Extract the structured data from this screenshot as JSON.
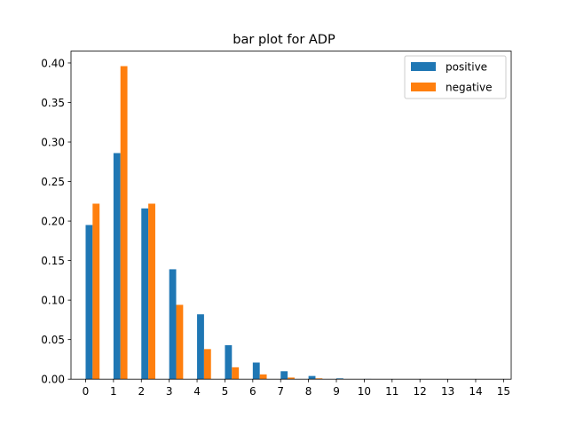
{
  "chart_data": {
    "type": "bar",
    "title": "bar plot for ADP",
    "xlabel": "",
    "ylabel": "",
    "categories": [
      "0",
      "1",
      "2",
      "3",
      "4",
      "5",
      "6",
      "7",
      "8",
      "9",
      "10",
      "11",
      "12",
      "13",
      "14",
      "15"
    ],
    "series": [
      {
        "name": "positive",
        "color": "#1f77b4",
        "values": [
          0.195,
          0.286,
          0.216,
          0.139,
          0.082,
          0.043,
          0.021,
          0.01,
          0.004,
          0.001,
          0.0003,
          0.0001,
          0,
          0,
          0,
          0
        ]
      },
      {
        "name": "negative",
        "color": "#ff7f0e",
        "values": [
          0.222,
          0.396,
          0.222,
          0.094,
          0.038,
          0.015,
          0.006,
          0.002,
          0.001,
          0.0002,
          0.0001,
          0,
          0,
          0,
          0,
          0
        ]
      }
    ],
    "ylim": [
      0,
      0.415
    ],
    "yticks": [
      "0.00",
      "0.05",
      "0.10",
      "0.15",
      "0.20",
      "0.25",
      "0.30",
      "0.35",
      "0.40"
    ],
    "grid": false,
    "legend_position": "top-right"
  }
}
